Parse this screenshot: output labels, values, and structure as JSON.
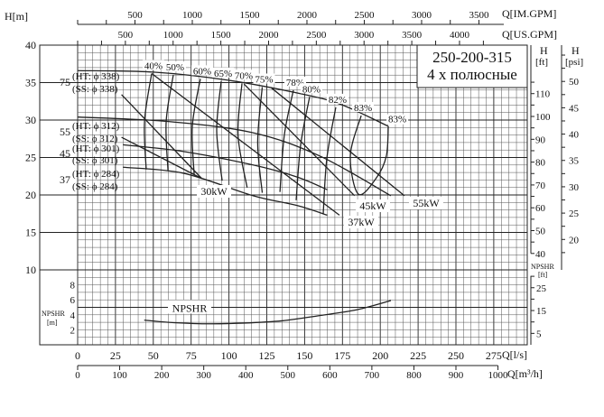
{
  "chart_data": {
    "type": "line",
    "title": "250-200-315",
    "subtitle": "4 х полюсные",
    "xlabel": "Q[l/s]",
    "ylabel": "H[m]",
    "xlim": [
      0,
      297
    ],
    "ylim": [
      0,
      40
    ],
    "grid": true,
    "x_ticks": [
      "0",
      "25",
      "50",
      "75",
      "100",
      "125",
      "150",
      "175",
      "200",
      "225",
      "250",
      "275"
    ],
    "x2": {
      "label": "Q[m³/h]",
      "ticks": [
        "0",
        "100",
        "200",
        "300",
        "400",
        "500",
        "600",
        "700",
        "800",
        "900",
        "1000"
      ]
    },
    "x_top_us": {
      "label": "Q[US.GPM]",
      "ticks": [
        "500",
        "1000",
        "1500",
        "2000",
        "2500",
        "3000",
        "3500",
        "4000"
      ]
    },
    "x_top_im": {
      "label": "Q[IM.GPM]",
      "ticks": [
        "500",
        "1000",
        "1500",
        "2000",
        "2500",
        "3000",
        "3500"
      ]
    },
    "y_ticks": [
      "10",
      "15",
      "20",
      "25",
      "30",
      "35",
      "40"
    ],
    "y_ft": {
      "label": "H",
      "unit": "[ft]",
      "ticks": [
        "40",
        "50",
        "60",
        "70",
        "80",
        "90",
        "100",
        "110"
      ]
    },
    "y_psi": {
      "label": "H",
      "unit": "[psi]",
      "ticks": [
        "20",
        "25",
        "30",
        "35",
        "40",
        "45",
        "50"
      ]
    },
    "npshr_axis": {
      "label": "NPSHR",
      "unit": "[m]",
      "ticks": [
        "2",
        "4",
        "6",
        "8"
      ]
    },
    "npshr_ft_axis": {
      "label": "NPSHR",
      "unit": "[ft]",
      "ticks": [
        "5",
        "15",
        "25"
      ]
    },
    "hq_curves": [
      {
        "kw": "75",
        "ht": "(HT: ϕ 338)",
        "ss": "(SS: ϕ 338)",
        "points": [
          [
            0,
            36.6
          ],
          [
            50,
            36.4
          ],
          [
            100,
            35.3
          ],
          [
            150,
            33.4
          ],
          [
            175,
            32.0
          ],
          [
            205,
            29.2
          ]
        ]
      },
      {
        "kw": "55",
        "ht": "(HT: ϕ 312)",
        "ss": "(SS: ϕ 312)",
        "points": [
          [
            0,
            30.4
          ],
          [
            60,
            29.8
          ],
          [
            116,
            28.3
          ],
          [
            160,
            25.2
          ],
          [
            207,
            19.9
          ]
        ]
      },
      {
        "kw": "45",
        "ht": "(HT: ϕ 301)",
        "ss": "(SS: ϕ 301)",
        "points": [
          [
            30,
            26.7
          ],
          [
            70,
            25.8
          ],
          [
            116,
            24.0
          ],
          [
            145,
            22.4
          ],
          [
            165,
            20.7
          ]
        ]
      },
      {
        "kw": "37",
        "ht": "(HT: ϕ 284)",
        "ss": "(SS: ϕ 284)",
        "points": [
          [
            30,
            23.7
          ],
          [
            70,
            22.9
          ],
          [
            116,
            19.9
          ],
          [
            145,
            18.6
          ],
          [
            165,
            17.3
          ]
        ]
      }
    ],
    "power_lines": [
      {
        "label": "30kW",
        "segments": [
          [
            [
              29,
              33.4
            ],
            [
              82,
              22.2
            ]
          ],
          [
            [
              29,
              27.7
            ],
            [
              82,
              22.2
            ]
          ]
        ]
      },
      {
        "label": "37kW",
        "segments": [
          [
            [
              49,
              36.2
            ],
            [
              173,
              17.3
            ]
          ]
        ]
      },
      {
        "label": "45kW",
        "segments": [
          [
            [
              110,
              34.8
            ],
            [
              183,
              19.9
            ]
          ]
        ]
      },
      {
        "label": "55kW",
        "segments": [
          [
            [
              128,
              34.3
            ],
            [
              216,
              19.9
            ]
          ]
        ]
      }
    ],
    "efficiency_curves": [
      {
        "label": "40%",
        "points": [
          [
            48.9,
            36.2
          ],
          [
            44.2,
            29.8
          ],
          [
            45.3,
            23.4
          ]
        ]
      },
      {
        "label": "50%",
        "points": [
          [
            63.2,
            36.0
          ],
          [
            58.5,
            29.8
          ],
          [
            59.7,
            23.3
          ]
        ]
      },
      {
        "label": "60%",
        "points": [
          [
            81.1,
            35.5
          ],
          [
            75.8,
            29.2
          ],
          [
            77.0,
            22.7
          ]
        ]
      },
      {
        "label": "65%",
        "points": [
          [
            94.9,
            35.2
          ],
          [
            91.9,
            28.6
          ],
          [
            95.5,
            21.9
          ]
        ]
      },
      {
        "label": "70%",
        "points": [
          [
            108.6,
            34.9
          ],
          [
            106.0,
            28.0
          ],
          [
            112.0,
            21.0
          ]
        ]
      },
      {
        "label": "75%",
        "points": [
          [
            122.0,
            34.4
          ],
          [
            119.0,
            27.0
          ],
          [
            122.0,
            20.3
          ]
        ]
      },
      {
        "label": "78%",
        "points": [
          [
            142.6,
            34.0
          ],
          [
            136.6,
            28.0
          ],
          [
            133.7,
            20.4
          ]
        ]
      },
      {
        "label": "80%",
        "points": [
          [
            153.3,
            33.1
          ],
          [
            147.4,
            26.7
          ],
          [
            144.4,
            19.3
          ]
        ]
      },
      {
        "label": "82%",
        "points": [
          [
            170.6,
            31.7
          ],
          [
            164.7,
            24.9
          ],
          [
            162.3,
            17.5
          ]
        ]
      },
      {
        "label": "83%",
        "points": [
          [
            187.4,
            30.6
          ],
          [
            180.2,
            25.2
          ],
          [
            185.6,
            20.1
          ],
          [
            197.5,
            22.3
          ],
          [
            204.0,
            25.2
          ],
          [
            205.3,
            29.2
          ]
        ]
      }
    ],
    "efficiency_end_label": "83%",
    "npshr_curve": {
      "label": "NPSHR",
      "points": [
        [
          44,
          3.3
        ],
        [
          60,
          3.0
        ],
        [
          85,
          2.8
        ],
        [
          110,
          2.9
        ],
        [
          135,
          3.2
        ],
        [
          160,
          3.9
        ],
        [
          185,
          4.7
        ],
        [
          207,
          5.9
        ]
      ]
    }
  }
}
